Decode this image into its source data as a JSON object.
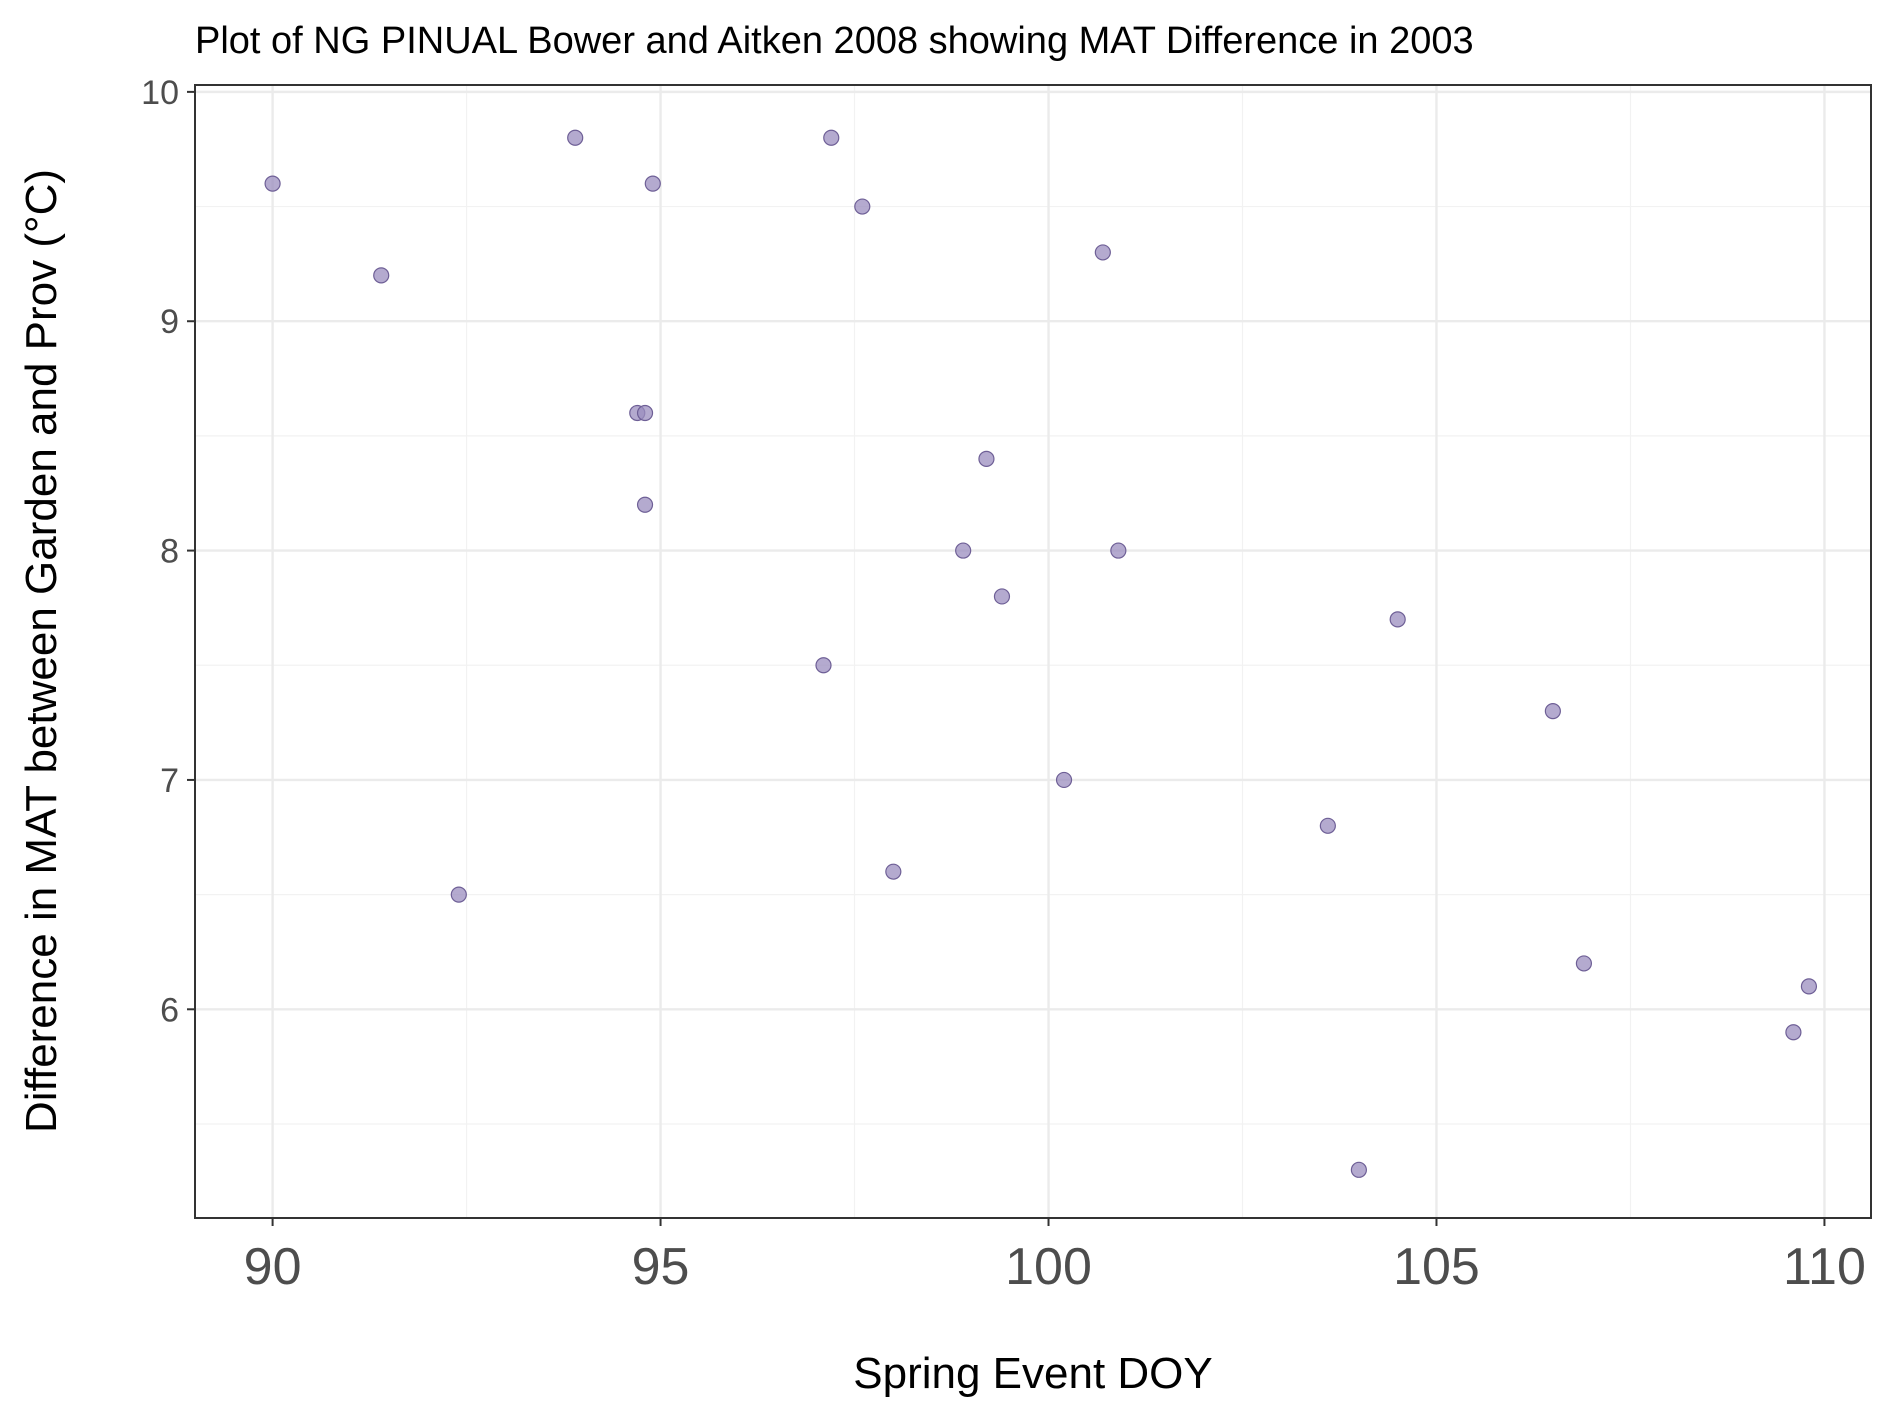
{
  "chart_data": {
    "type": "scatter",
    "title": "Plot of NG PINUAL Bower and Aitken 2008 showing MAT Difference in 2003",
    "xlabel": "Spring Event DOY",
    "ylabel": "Difference in MAT between Garden and Prov (°C)",
    "xlim": [
      89,
      110.6
    ],
    "ylim": [
      5.09,
      10.03
    ],
    "x_ticks": [
      90,
      95,
      100,
      105,
      110
    ],
    "x_tick_labels": [
      "90",
      "95",
      "100",
      "105",
      "110"
    ],
    "y_ticks": [
      6,
      7,
      8,
      9,
      10
    ],
    "y_tick_labels": [
      "6",
      "7",
      "8",
      "9",
      "10"
    ],
    "grid": true,
    "point_color": "#9b8dbf",
    "point_stroke": "#6e5f96",
    "series": [
      {
        "x": [
          90.0,
          91.4,
          92.4,
          93.9,
          94.7,
          94.8,
          94.8,
          94.9,
          97.1,
          97.2,
          97.6,
          98.0,
          98.9,
          99.2,
          99.4,
          100.2,
          100.7,
          100.9,
          103.6,
          104.0,
          104.5,
          106.5,
          106.9,
          109.6,
          109.8
        ],
        "y": [
          9.6,
          9.2,
          6.5,
          9.8,
          8.6,
          8.6,
          8.2,
          9.6,
          7.5,
          9.8,
          9.5,
          6.6,
          8.0,
          8.4,
          7.8,
          7.0,
          9.3,
          8.0,
          6.8,
          5.3,
          7.7,
          7.3,
          6.2,
          5.9,
          6.1
        ]
      }
    ]
  }
}
